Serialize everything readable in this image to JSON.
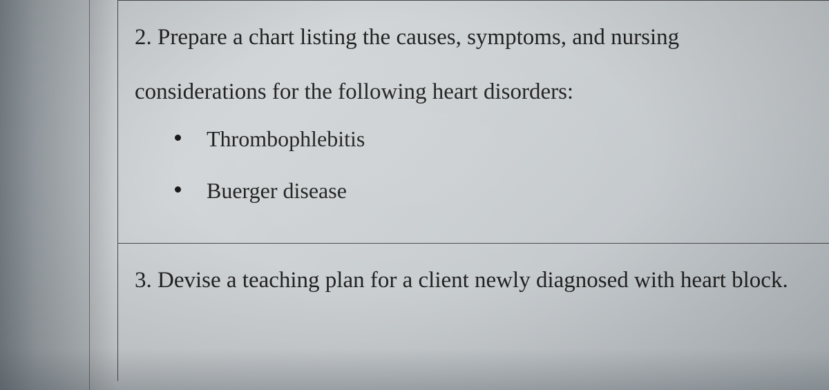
{
  "colors": {
    "page_bg": "#cdd2d5",
    "text": "#1a1a1a",
    "border": "#4a4a4a",
    "shadow_left": "#7a8289"
  },
  "typography": {
    "family": "Times New Roman",
    "body_fontsize": 33,
    "list_fontsize": 32,
    "line_height": 2.4
  },
  "item2": {
    "text": "2. Prepare a chart listing the causes, symptoms, and nursing considerations for the following heart disorders:",
    "bullets": [
      "Thrombophlebitis",
      "Buerger disease"
    ]
  },
  "item3": {
    "text": "3. Devise a teaching plan for a client newly diagnosed with heart block."
  }
}
